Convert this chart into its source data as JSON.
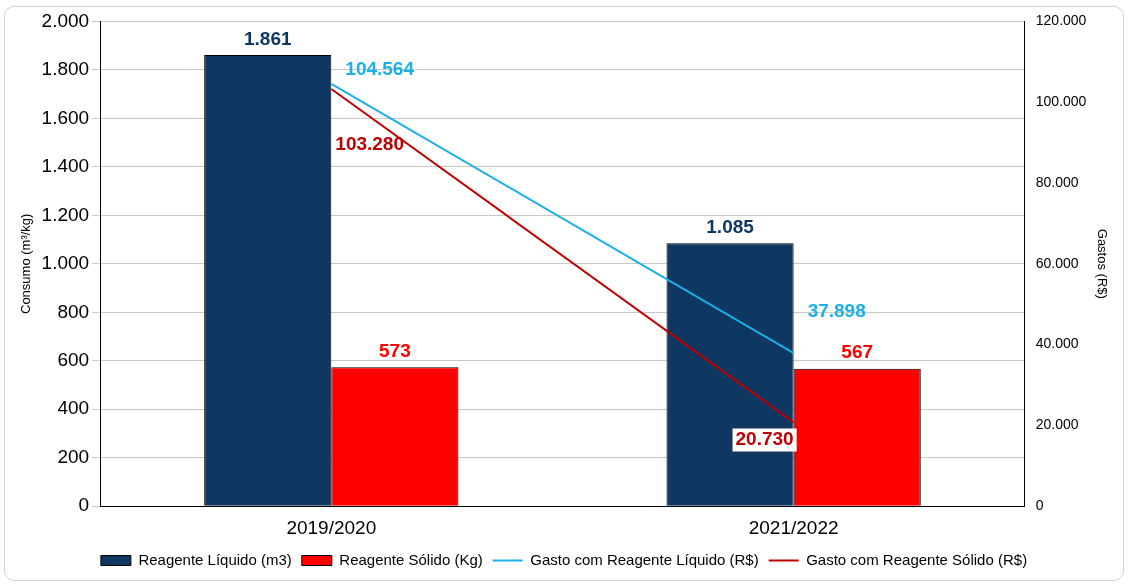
{
  "chart_data": {
    "type": "bar",
    "ylabel": "Consumo (m³/kg)",
    "y2label": "Gastos (R$)",
    "categories": [
      "2019/2020",
      "2021/2022"
    ],
    "series": [
      {
        "name": "Reagente Líquido (m3)",
        "color": "#0e3762",
        "values": [
          1861,
          1085
        ],
        "value_labels": [
          "1.861",
          "1.085"
        ]
      },
      {
        "name": "Reagente Sólido (Kg)",
        "color": "#ff0000",
        "values": [
          573,
          567
        ],
        "value_labels": [
          "573",
          "567"
        ]
      },
      {
        "name": "Gasto com Reagente Líquido (R$)",
        "type": "line",
        "axis": "y2",
        "color": "#1ab0e8",
        "values": [
          104564,
          37898
        ],
        "value_labels": [
          "104.564",
          "37.898"
        ]
      },
      {
        "name": "Gasto com Reagente Sólido (R$)",
        "type": "line",
        "axis": "y2",
        "color": "#c00000",
        "values": [
          103280,
          20730
        ],
        "value_labels": [
          "103.280",
          "20.730"
        ]
      }
    ],
    "ylim": [
      0,
      2000
    ],
    "yticks": [
      0,
      {
        "value": 200,
        "label": "200"
      },
      {
        "value": 400,
        "label": "400"
      },
      {
        "value": 600,
        "label": "600"
      },
      {
        "value": 800,
        "label": "800"
      },
      {
        "value": 1000,
        "label": "1.000"
      },
      {
        "value": 1200,
        "label": "1.200"
      },
      {
        "value": 1400,
        "label": "1.400"
      },
      {
        "value": 1600,
        "label": "1.600"
      },
      {
        "value": 1800,
        "label": "1.800"
      },
      {
        "value": 2000,
        "label": "2.000"
      }
    ],
    "y2lim": [
      0,
      120000
    ],
    "y2ticks": [
      0,
      {
        "value": 20000,
        "label": "20.000"
      },
      {
        "value": 40000,
        "label": "40.000"
      },
      {
        "value": 60000,
        "label": "60.000"
      },
      {
        "value": 80000,
        "label": "80.000"
      },
      {
        "value": 100000,
        "label": "100.000"
      },
      {
        "value": 120000,
        "label": "120.000"
      }
    ],
    "grid": "y",
    "legend": "bottom"
  }
}
